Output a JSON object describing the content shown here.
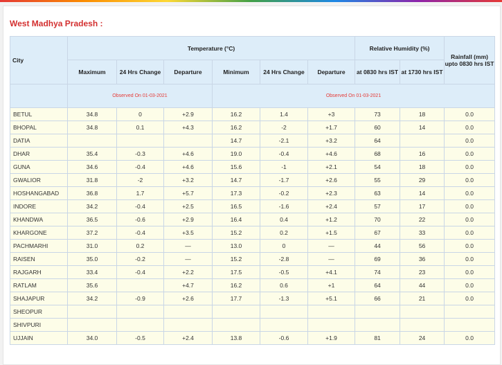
{
  "region_title": "West Madhya Pradesh :",
  "headers": {
    "city": "City",
    "temperature": "Temperature (°C)",
    "relative_humidity": "Relative Humidity (%)",
    "rainfall": "Rainfall (mm) upto 0830 hrs IST",
    "maximum": "Maximum",
    "change_24h": "24 Hrs Change",
    "departure": "Departure",
    "minimum": "Minimum",
    "rh_0830": "at 0830 hrs IST",
    "rh_1730": "at 1730 hrs IST",
    "observed_max": "Observed On 01-03-2021",
    "observed_min": "Observed On 01-03-2021"
  },
  "rows": [
    {
      "city": "BETUL",
      "max": "34.8",
      "max_change": "0",
      "max_dep": "+2.9",
      "min": "16.2",
      "min_change": "1.4",
      "min_dep": "+3",
      "rh_0830": "73",
      "rh_1730": "18",
      "rain": "0.0"
    },
    {
      "city": "BHOPAL",
      "max": "34.8",
      "max_change": "0.1",
      "max_dep": "+4.3",
      "min": "16.2",
      "min_change": "-2",
      "min_dep": "+1.7",
      "rh_0830": "60",
      "rh_1730": "14",
      "rain": "0.0"
    },
    {
      "city": "DATIA",
      "max": "",
      "max_change": "",
      "max_dep": "",
      "min": "14.7",
      "min_change": "-2.1",
      "min_dep": "+3.2",
      "rh_0830": "64",
      "rh_1730": "",
      "rain": "0.0"
    },
    {
      "city": "DHAR",
      "max": "35.4",
      "max_change": "-0.3",
      "max_dep": "+4.6",
      "min": "19.0",
      "min_change": "-0.4",
      "min_dep": "+4.6",
      "rh_0830": "68",
      "rh_1730": "16",
      "rain": "0.0"
    },
    {
      "city": "GUNA",
      "max": "34.6",
      "max_change": "-0.4",
      "max_dep": "+4.6",
      "min": "15.6",
      "min_change": "-1",
      "min_dep": "+2.1",
      "rh_0830": "54",
      "rh_1730": "18",
      "rain": "0.0"
    },
    {
      "city": "GWALIOR",
      "max": "31.8",
      "max_change": "-2",
      "max_dep": "+3.2",
      "min": "14.7",
      "min_change": "-1.7",
      "min_dep": "+2.6",
      "rh_0830": "55",
      "rh_1730": "29",
      "rain": "0.0"
    },
    {
      "city": "HOSHANGABAD",
      "max": "36.8",
      "max_change": "1.7",
      "max_dep": "+5.7",
      "min": "17.3",
      "min_change": "-0.2",
      "min_dep": "+2.3",
      "rh_0830": "63",
      "rh_1730": "14",
      "rain": "0.0"
    },
    {
      "city": "INDORE",
      "max": "34.2",
      "max_change": "-0.4",
      "max_dep": "+2.5",
      "min": "16.5",
      "min_change": "-1.6",
      "min_dep": "+2.4",
      "rh_0830": "57",
      "rh_1730": "17",
      "rain": "0.0"
    },
    {
      "city": "KHANDWA",
      "max": "36.5",
      "max_change": "-0.6",
      "max_dep": "+2.9",
      "min": "16.4",
      "min_change": "0.4",
      "min_dep": "+1.2",
      "rh_0830": "70",
      "rh_1730": "22",
      "rain": "0.0"
    },
    {
      "city": "KHARGONE",
      "max": "37.2",
      "max_change": "-0.4",
      "max_dep": "+3.5",
      "min": "15.2",
      "min_change": "0.2",
      "min_dep": "+1.5",
      "rh_0830": "67",
      "rh_1730": "33",
      "rain": "0.0"
    },
    {
      "city": "PACHMARHI",
      "max": "31.0",
      "max_change": "0.2",
      "max_dep": "—",
      "min": "13.0",
      "min_change": "0",
      "min_dep": "—",
      "rh_0830": "44",
      "rh_1730": "56",
      "rain": "0.0"
    },
    {
      "city": "RAISEN",
      "max": "35.0",
      "max_change": "-0.2",
      "max_dep": "—",
      "min": "15.2",
      "min_change": "-2.8",
      "min_dep": "—",
      "rh_0830": "69",
      "rh_1730": "36",
      "rain": "0.0"
    },
    {
      "city": "RAJGARH",
      "max": "33.4",
      "max_change": "-0.4",
      "max_dep": "+2.2",
      "min": "17.5",
      "min_change": "-0.5",
      "min_dep": "+4.1",
      "rh_0830": "74",
      "rh_1730": "23",
      "rain": "0.0"
    },
    {
      "city": "RATLAM",
      "max": "35.6",
      "max_change": "",
      "max_dep": "+4.7",
      "min": "16.2",
      "min_change": "0.6",
      "min_dep": "+1",
      "rh_0830": "64",
      "rh_1730": "44",
      "rain": "0.0"
    },
    {
      "city": "SHAJAPUR",
      "max": "34.2",
      "max_change": "-0.9",
      "max_dep": "+2.6",
      "min": "17.7",
      "min_change": "-1.3",
      "min_dep": "+5.1",
      "rh_0830": "66",
      "rh_1730": "21",
      "rain": "0.0"
    },
    {
      "city": "SHEOPUR",
      "max": "",
      "max_change": "",
      "max_dep": "",
      "min": "",
      "min_change": "",
      "min_dep": "",
      "rh_0830": "",
      "rh_1730": "",
      "rain": ""
    },
    {
      "city": "SHIVPURI",
      "max": "",
      "max_change": "",
      "max_dep": "",
      "min": "",
      "min_change": "",
      "min_dep": "",
      "rh_0830": "",
      "rh_1730": "",
      "rain": ""
    },
    {
      "city": "UJJAIN",
      "max": "34.0",
      "max_change": "-0.5",
      "max_dep": "+2.4",
      "min": "13.8",
      "min_change": "-0.6",
      "min_dep": "+1.9",
      "rh_0830": "81",
      "rh_1730": "24",
      "rain": "0.0"
    }
  ]
}
